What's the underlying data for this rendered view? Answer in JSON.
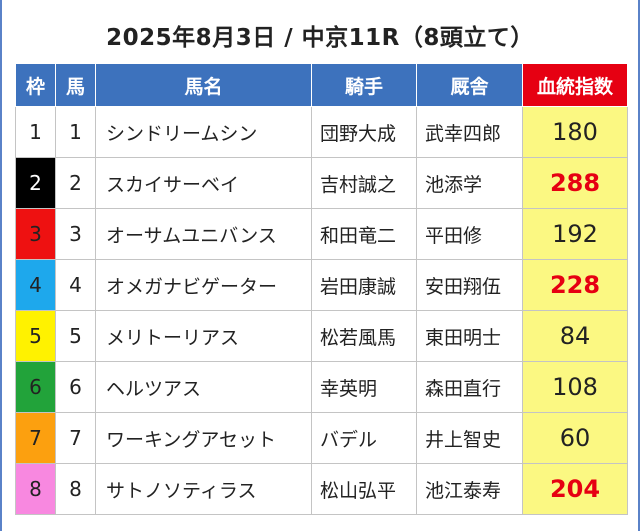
{
  "title": "2025年8月3日 / 中京11R（8頭立て）",
  "headers": {
    "waku": "枠",
    "uma": "馬",
    "name": "馬名",
    "jockey": "騎手",
    "trainer": "厩舎",
    "index": "血統指数"
  },
  "colors": {
    "header_blue": "#3d72bd",
    "header_red": "#e60012",
    "index_bg": "#fbf882",
    "high_value": "#e60012"
  },
  "rows": [
    {
      "waku": "1",
      "uma": "1",
      "name": "シンドリームシン",
      "jockey": "団野大成",
      "trainer": "武幸四郎",
      "index": "180",
      "high": false,
      "waku_bg": "#ffffff",
      "waku_fg": "#222222"
    },
    {
      "waku": "2",
      "uma": "2",
      "name": "スカイサーベイ",
      "jockey": "吉村誠之",
      "trainer": "池添学",
      "index": "288",
      "high": true,
      "waku_bg": "#000000",
      "waku_fg": "#ffffff"
    },
    {
      "waku": "3",
      "uma": "3",
      "name": "オーサムユニバンス",
      "jockey": "和田竜二",
      "trainer": "平田修",
      "index": "192",
      "high": false,
      "waku_bg": "#ee1111",
      "waku_fg": "#222222"
    },
    {
      "waku": "4",
      "uma": "4",
      "name": "オメガナビゲーター",
      "jockey": "岩田康誠",
      "trainer": "安田翔伍",
      "index": "228",
      "high": true,
      "waku_bg": "#1ea8ec",
      "waku_fg": "#222222"
    },
    {
      "waku": "5",
      "uma": "5",
      "name": "メリトーリアス",
      "jockey": "松若風馬",
      "trainer": "東田明士",
      "index": "84",
      "high": false,
      "waku_bg": "#fff200",
      "waku_fg": "#222222"
    },
    {
      "waku": "6",
      "uma": "6",
      "name": "ヘルツアス",
      "jockey": "幸英明",
      "trainer": "森田直行",
      "index": "108",
      "high": false,
      "waku_bg": "#22a33a",
      "waku_fg": "#222222"
    },
    {
      "waku": "7",
      "uma": "7",
      "name": "ワーキングアセット",
      "jockey": "バデル",
      "trainer": "井上智史",
      "index": "60",
      "high": false,
      "waku_bg": "#fca00f",
      "waku_fg": "#222222"
    },
    {
      "waku": "8",
      "uma": "8",
      "name": "サトノソティラス",
      "jockey": "松山弘平",
      "trainer": "池江泰寿",
      "index": "204",
      "high": true,
      "waku_bg": "#f888e0",
      "waku_fg": "#222222"
    }
  ]
}
